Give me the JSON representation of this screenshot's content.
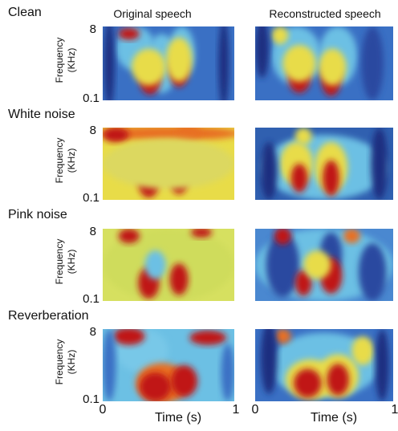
{
  "columns": [
    "Original speech",
    "Reconstructed speech"
  ],
  "rows": [
    {
      "label": "Clean"
    },
    {
      "label": "White noise"
    },
    {
      "label": "Pink noise"
    },
    {
      "label": "Reverberation"
    }
  ],
  "y_axis": {
    "label": [
      "Frequency",
      "(KHz)"
    ],
    "ticks": [
      "8",
      "0.1"
    ]
  },
  "x_axis": {
    "label": "Time (s)",
    "ticks": [
      "0",
      "1"
    ]
  }
}
